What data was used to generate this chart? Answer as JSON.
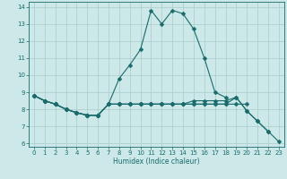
{
  "title": "",
  "xlabel": "Humidex (Indice chaleur)",
  "xlim": [
    -0.5,
    23.5
  ],
  "ylim": [
    5.8,
    14.3
  ],
  "yticks": [
    6,
    7,
    8,
    9,
    10,
    11,
    12,
    13,
    14
  ],
  "xticks": [
    0,
    1,
    2,
    3,
    4,
    5,
    6,
    7,
    8,
    9,
    10,
    11,
    12,
    13,
    14,
    15,
    16,
    17,
    18,
    19,
    20,
    21,
    22,
    23
  ],
  "bg_color": "#cce8e8",
  "grid_color": "#aacccc",
  "line_color": "#1a6b6b",
  "series1": [
    8.8,
    8.5,
    8.3,
    8.0,
    7.8,
    7.65,
    7.65,
    8.3,
    9.8,
    10.6,
    11.5,
    13.8,
    13.0,
    13.8,
    13.6,
    12.7,
    11.0,
    9.0,
    8.7,
    null,
    null,
    null,
    null,
    null
  ],
  "series2": [
    8.8,
    8.5,
    8.3,
    8.0,
    7.8,
    7.65,
    7.65,
    8.3,
    8.3,
    8.3,
    8.3,
    8.3,
    8.3,
    8.3,
    8.3,
    8.3,
    8.3,
    8.3,
    8.3,
    8.3,
    8.3,
    null,
    null,
    null
  ],
  "series3": [
    8.8,
    8.5,
    8.3,
    8.0,
    7.8,
    7.65,
    7.65,
    8.3,
    8.3,
    8.3,
    8.3,
    8.3,
    8.3,
    8.3,
    8.3,
    8.3,
    8.3,
    8.3,
    8.3,
    8.7,
    7.9,
    7.3,
    6.7,
    null
  ],
  "series4": [
    8.8,
    8.5,
    8.3,
    8.0,
    7.8,
    7.65,
    7.65,
    8.3,
    8.3,
    8.3,
    8.3,
    8.3,
    8.3,
    8.3,
    8.3,
    8.5,
    8.5,
    8.5,
    8.5,
    8.7,
    7.9,
    7.3,
    6.7,
    6.1
  ],
  "markersize": 2.5
}
